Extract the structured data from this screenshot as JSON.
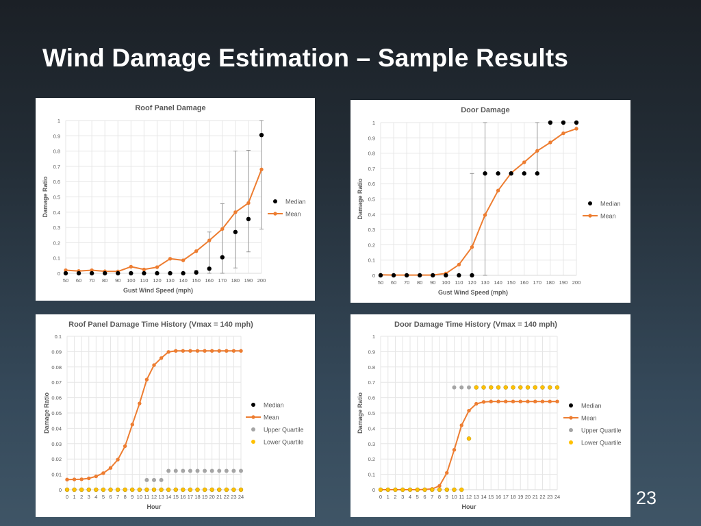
{
  "slide": {
    "title": "Wind Damage Estimation – Sample Results",
    "page_number": "23"
  },
  "colors": {
    "median": "#000000",
    "mean": "#ed7d31",
    "upper_quartile": "#a5a5a5",
    "lower_quartile": "#ffc000",
    "error_bar": "#7f7f7f"
  },
  "chart_data": [
    {
      "id": "roof-panel-damage",
      "type": "scatter",
      "title": "Roof Panel Damage",
      "xlabel": "Gust Wind Speed (mph)",
      "ylabel": "Damage Ratio",
      "x": [
        50,
        60,
        70,
        80,
        90,
        100,
        110,
        120,
        130,
        140,
        150,
        160,
        170,
        180,
        190,
        200
      ],
      "xlim": [
        50,
        200
      ],
      "ylim": [
        0,
        1
      ],
      "yticks": [
        "0",
        "0.1",
        "0.2",
        "0.3",
        "0.4",
        "0.5",
        "0.6",
        "0.7",
        "0.8",
        "0.9",
        "1"
      ],
      "grid": true,
      "legend_position": "right",
      "series": [
        {
          "name": "Median",
          "style": "marker",
          "color": "#000000",
          "values": [
            0,
            0,
            0,
            0,
            0,
            0,
            0,
            0,
            0,
            0,
            0.005,
            0.03,
            0.105,
            0.27,
            0.355,
            0.905
          ],
          "error_low": [
            null,
            null,
            null,
            null,
            null,
            null,
            null,
            null,
            null,
            null,
            0,
            0,
            0,
            0.035,
            0.14,
            0.29
          ],
          "error_high": [
            null,
            null,
            null,
            null,
            null,
            null,
            null,
            null,
            null,
            null,
            0.02,
            0.27,
            0.455,
            0.8,
            0.805,
            1.0
          ]
        },
        {
          "name": "Mean",
          "style": "line-marker",
          "color": "#ed7d31",
          "values": [
            0.02,
            0.015,
            0.02,
            0.013,
            0.012,
            0.043,
            0.025,
            0.04,
            0.095,
            0.085,
            0.145,
            0.215,
            0.29,
            0.4,
            0.46,
            0.68
          ]
        }
      ]
    },
    {
      "id": "door-damage",
      "type": "scatter",
      "title": "Door Damage",
      "xlabel": "Gust Wind Speed (mph)",
      "ylabel": "Damage Ratio",
      "x": [
        50,
        60,
        70,
        80,
        90,
        100,
        110,
        120,
        130,
        140,
        150,
        160,
        170,
        180,
        190,
        200
      ],
      "xlim": [
        50,
        200
      ],
      "ylim": [
        0,
        1
      ],
      "yticks": [
        "0",
        "0.1",
        "0.2",
        "0.3",
        "0.4",
        "0.5",
        "0.6",
        "0.7",
        "0.8",
        "0.9",
        "1"
      ],
      "grid": true,
      "legend_position": "right",
      "series": [
        {
          "name": "Median",
          "style": "marker",
          "color": "#000000",
          "values": [
            0,
            0,
            0,
            0,
            0,
            0,
            0,
            0,
            0.667,
            0.667,
            0.667,
            0.667,
            0.667,
            1,
            1,
            1
          ],
          "error_low": [
            null,
            null,
            null,
            null,
            null,
            null,
            null,
            0,
            0,
            null,
            null,
            null,
            0.667,
            null,
            null,
            null
          ],
          "error_high": [
            null,
            null,
            null,
            null,
            null,
            null,
            null,
            0.667,
            1,
            null,
            null,
            null,
            1,
            null,
            null,
            null
          ]
        },
        {
          "name": "Mean",
          "style": "line-marker",
          "color": "#ed7d31",
          "values": [
            0.003,
            0.002,
            0.002,
            0.002,
            0.002,
            0.012,
            0.07,
            0.185,
            0.395,
            0.555,
            0.67,
            0.74,
            0.815,
            0.87,
            0.93,
            0.96
          ]
        }
      ]
    },
    {
      "id": "roof-panel-time-history",
      "type": "scatter",
      "title": "Roof Panel Damage Time History (Vmax = 140 mph)",
      "xlabel": "Hour",
      "ylabel": "Damage Ratio",
      "x": [
        0,
        1,
        2,
        3,
        4,
        5,
        6,
        7,
        8,
        9,
        10,
        11,
        12,
        13,
        14,
        15,
        16,
        17,
        18,
        19,
        20,
        21,
        22,
        23,
        24
      ],
      "xlim": [
        0,
        24
      ],
      "ylim": [
        0,
        0.1
      ],
      "yticks": [
        "0",
        "0.01",
        "0.02",
        "0.03",
        "0.04",
        "0.05",
        "0.06",
        "0.07",
        "0.08",
        "0.09",
        "0.1"
      ],
      "grid": true,
      "legend_position": "right",
      "series": [
        {
          "name": "Median",
          "style": "marker",
          "color": "#000000",
          "values": [
            0,
            0,
            0,
            0,
            0,
            0,
            0,
            0,
            0,
            0,
            0,
            0,
            0,
            0,
            0,
            0,
            0,
            0,
            0,
            0,
            0,
            0,
            0,
            0,
            0
          ]
        },
        {
          "name": "Mean",
          "style": "line-marker",
          "color": "#ed7d31",
          "values": [
            0.0066,
            0.0067,
            0.0068,
            0.0074,
            0.0087,
            0.0108,
            0.0142,
            0.0196,
            0.0284,
            0.0425,
            0.0562,
            0.0718,
            0.0812,
            0.0858,
            0.0898,
            0.0905,
            0.0905,
            0.0905,
            0.0905,
            0.0905,
            0.0905,
            0.0905,
            0.0905,
            0.0905,
            0.0905
          ]
        },
        {
          "name": "Upper Quartile",
          "style": "marker",
          "color": "#a5a5a5",
          "values": [
            null,
            null,
            null,
            null,
            null,
            null,
            null,
            null,
            null,
            null,
            null,
            0.0063,
            0.0063,
            0.0063,
            0.0123,
            0.0123,
            0.0123,
            0.0123,
            0.0123,
            0.0123,
            0.0123,
            0.0123,
            0.0123,
            0.0123,
            0.0123
          ]
        },
        {
          "name": "Lower Quartile",
          "style": "marker",
          "color": "#ffc000",
          "values": [
            0,
            0,
            0,
            0,
            0,
            0,
            0,
            0,
            0,
            0,
            0,
            0,
            0,
            0,
            0,
            0,
            0,
            0,
            0,
            0,
            0,
            0,
            0,
            0,
            0
          ]
        }
      ]
    },
    {
      "id": "door-time-history",
      "type": "scatter",
      "title": "Door Damage Time History (Vmax = 140 mph)",
      "xlabel": "Hour",
      "ylabel": "Damage Ratio",
      "x": [
        0,
        1,
        2,
        3,
        4,
        5,
        6,
        7,
        8,
        9,
        10,
        11,
        12,
        13,
        14,
        15,
        16,
        17,
        18,
        19,
        20,
        21,
        22,
        23,
        24
      ],
      "xlim": [
        0,
        24
      ],
      "ylim": [
        0,
        1
      ],
      "yticks": [
        "0",
        "0.1",
        "0.2",
        "0.3",
        "0.4",
        "0.5",
        "0.6",
        "0.7",
        "0.8",
        "0.9",
        "1"
      ],
      "grid": true,
      "legend_position": "right",
      "series": [
        {
          "name": "Median",
          "style": "marker",
          "color": "#000000",
          "values": [
            0,
            0,
            0,
            0,
            0,
            0,
            0,
            0,
            0,
            0,
            0,
            null,
            null,
            null,
            null,
            null,
            null,
            null,
            null,
            null,
            null,
            null,
            null,
            null,
            null
          ]
        },
        {
          "name": "Mean",
          "style": "line-marker",
          "color": "#ed7d31",
          "values": [
            0,
            0,
            0,
            0,
            0,
            0,
            0.002,
            0.005,
            0.025,
            0.11,
            0.26,
            0.42,
            0.515,
            0.56,
            0.572,
            0.575,
            0.575,
            0.575,
            0.575,
            0.575,
            0.575,
            0.575,
            0.575,
            0.575,
            0.575
          ]
        },
        {
          "name": "Upper Quartile",
          "style": "marker",
          "color": "#a5a5a5",
          "values": [
            null,
            null,
            null,
            null,
            null,
            null,
            null,
            null,
            null,
            null,
            0.667,
            0.667,
            0.667,
            0.667,
            0.667,
            0.667,
            0.667,
            0.667,
            0.667,
            0.667,
            0.667,
            0.667,
            0.667,
            0.667,
            0.667
          ]
        },
        {
          "name": "Lower Quartile",
          "style": "marker",
          "color": "#ffc000",
          "values": [
            0,
            0,
            0,
            0,
            0,
            0,
            0,
            0,
            0,
            0,
            0,
            0,
            0.333,
            0.667,
            0.667,
            0.667,
            0.667,
            0.667,
            0.667,
            0.667,
            0.667,
            0.667,
            0.667,
            0.667,
            0.667
          ]
        }
      ]
    }
  ]
}
